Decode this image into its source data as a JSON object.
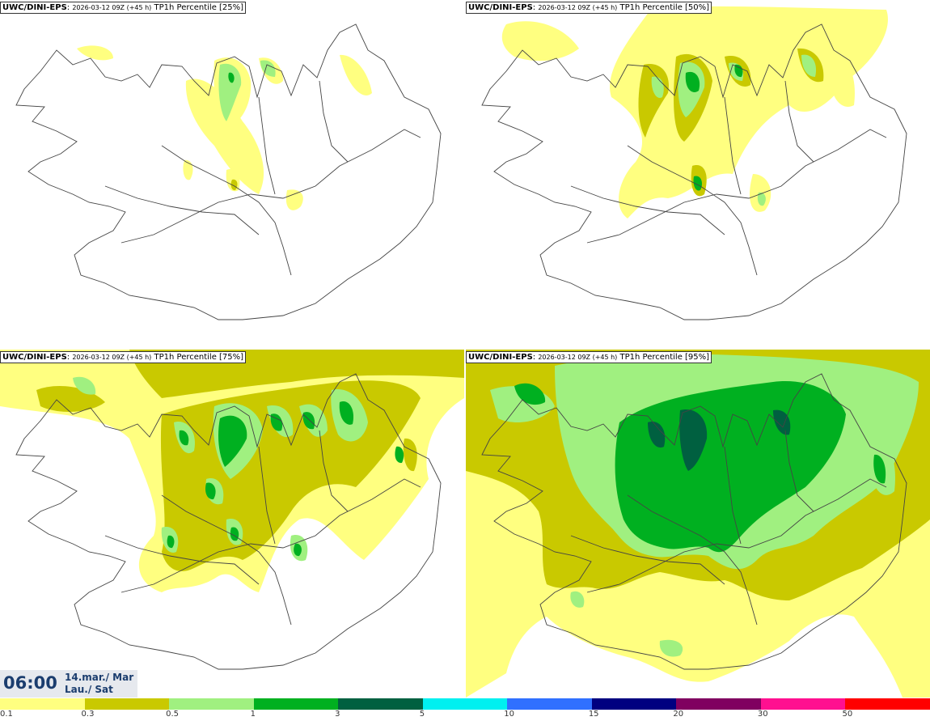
{
  "panels": [
    {
      "model": "UWC/DINI-EPS",
      "run": "2026-03-12 09Z (+45 h)",
      "product": "TP1h Percentile [25%]"
    },
    {
      "model": "UWC/DINI-EPS",
      "run": "2026-03-12 09Z (+45 h)",
      "product": "TP1h Percentile [50%]"
    },
    {
      "model": "UWC/DINI-EPS",
      "run": "2026-03-12 09Z (+45 h)",
      "product": "TP1h Percentile [75%]"
    },
    {
      "model": "UWC/DINI-EPS",
      "run": "2026-03-12 09Z (+45 h)",
      "product": "TP1h Percentile [95%]"
    }
  ],
  "time": {
    "clock": "06:00",
    "date_line1": "14.mar./ Mar",
    "date_line2": "Lau./ Sat"
  },
  "legend": {
    "colors": [
      "#ffff80",
      "#c9c900",
      "#a0f080",
      "#00b020",
      "#006040",
      "#00f0f0",
      "#3070ff",
      "#000080",
      "#800060",
      "#ff1090",
      "#ff0000"
    ],
    "labels": [
      "0.1",
      "0.3",
      "0.5",
      "1",
      "3",
      "5",
      "10",
      "15",
      "20",
      "30",
      "50"
    ]
  }
}
